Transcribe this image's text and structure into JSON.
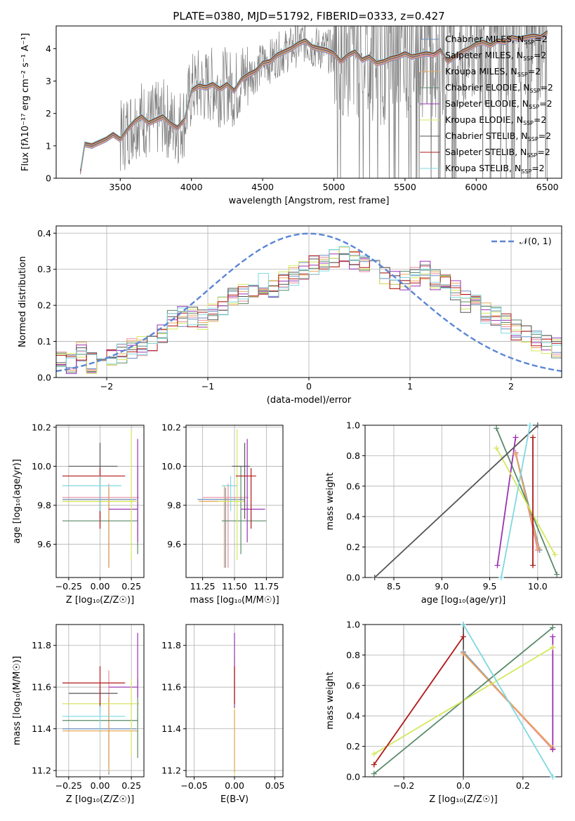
{
  "figure_title": "PLATE=0380, MJD=51792, FIBERID=0333, z=0.427",
  "palette": {
    "data_grey": "#7f7f7f",
    "normal_curve": "#5b86d6",
    "Chabrier MILES": "#6c8ebf",
    "Salpeter MILES": "#e88aa0",
    "Kroupa MILES": "#e8a95a",
    "Chabrier ELODIE": "#5a8a6a",
    "Salpeter ELODIE": "#9b32b4",
    "Kroupa ELODIE": "#d4e85a",
    "Chabrier STELIB": "#555555",
    "Salpeter STELIB": "#b01818",
    "Kroupa STELIB": "#7fd8e0"
  },
  "chart_data": [
    {
      "id": "spectrum",
      "type": "line",
      "xlabel": "wavelength [Angstrom, rest frame]",
      "ylabel": "Flux [f_λ 10^-17 erg cm^-2 s^-1 A^-1]",
      "xlim": [
        3050,
        6600
      ],
      "ylim": [
        0,
        4.7
      ],
      "xticks": [
        "3500",
        "4000",
        "4500",
        "5000",
        "5500",
        "6000",
        "6500"
      ],
      "yticks": [
        "0",
        "1",
        "2",
        "3",
        "4"
      ],
      "grid": false,
      "legend_position": "top-right",
      "legend": [
        "Chabrier MILES, N_SSP=2",
        "Salpeter MILES, N_SSP=2",
        "Kroupa MILES, N_SSP=2",
        "Chabrier ELODIE, N_SSP=2",
        "Salpeter ELODIE, N_SSP=2",
        "Kroupa ELODIE, N_SSP=2",
        "Chabrier STELIB, N_SSP=2",
        "Salpeter STELIB, N_SSP=2",
        "Kroupa STELIB, N_SSP=2"
      ],
      "model_continuum": {
        "x": [
          3220,
          3250,
          3300,
          3350,
          3400,
          3450,
          3500,
          3550,
          3600,
          3650,
          3700,
          3750,
          3800,
          3850,
          3900,
          3950,
          4000,
          4050,
          4100,
          4150,
          4200,
          4250,
          4300,
          4350,
          4400,
          4450,
          4500,
          4550,
          4600,
          4650,
          4700,
          4750,
          4800,
          4850,
          4900,
          4950,
          5000,
          5050,
          5100,
          5150,
          5200,
          5250,
          5300,
          5350,
          5400,
          5450,
          5500,
          5550,
          5600,
          5650,
          5700,
          5750,
          5800,
          5850,
          5900,
          5950,
          6000,
          6050,
          6100,
          6150,
          6200,
          6250,
          6300,
          6350,
          6400,
          6450,
          6500
        ],
        "y": [
          0.2,
          1.05,
          1.0,
          1.1,
          1.2,
          1.35,
          1.2,
          1.5,
          1.75,
          1.9,
          1.7,
          1.8,
          1.9,
          1.7,
          1.55,
          1.8,
          2.7,
          2.85,
          2.8,
          2.9,
          2.75,
          2.9,
          2.7,
          3.05,
          3.2,
          3.3,
          3.55,
          3.6,
          3.8,
          3.9,
          4.0,
          4.15,
          4.25,
          4.05,
          4.0,
          3.95,
          3.85,
          3.6,
          3.8,
          3.9,
          3.65,
          3.75,
          3.55,
          3.6,
          3.7,
          3.75,
          3.85,
          3.75,
          3.8,
          3.85,
          3.8,
          3.95,
          3.6,
          3.75,
          3.9,
          4.0,
          4.15,
          4.2,
          4.1,
          4.25,
          4.2,
          4.35,
          4.3,
          4.35,
          4.4,
          4.35,
          4.5
        ]
      }
    },
    {
      "id": "residuals",
      "type": "histogram",
      "xlabel": "(data-model)/error",
      "ylabel": "Normed distribution",
      "xlim": [
        -2.5,
        2.5
      ],
      "ylim": [
        0,
        0.42
      ],
      "xticks": [
        "−2",
        "−1",
        "0",
        "1",
        "2"
      ],
      "yticks": [
        "0.0",
        "0.1",
        "0.2",
        "0.3",
        "0.4"
      ],
      "grid": true,
      "legend_position": "top-right",
      "legend": [
        "N(0, 1)"
      ],
      "bins": [
        -2.5,
        -2.4,
        -2.3,
        -2.2,
        -2.1,
        -2.0,
        -1.9,
        -1.8,
        -1.7,
        -1.6,
        -1.5,
        -1.4,
        -1.3,
        -1.2,
        -1.1,
        -1.0,
        -0.9,
        -0.8,
        -0.7,
        -0.6,
        -0.5,
        -0.4,
        -0.3,
        -0.2,
        -0.1,
        0.0,
        0.1,
        0.2,
        0.3,
        0.4,
        0.5,
        0.6,
        0.7,
        0.8,
        0.9,
        1.0,
        1.1,
        1.2,
        1.3,
        1.4,
        1.5,
        1.6,
        1.7,
        1.8,
        1.9,
        2.0,
        2.1,
        2.2,
        2.3,
        2.4,
        2.5
      ],
      "mean_histogram": [
        0.06,
        0.04,
        0.07,
        0.04,
        0.05,
        0.06,
        0.07,
        0.08,
        0.09,
        0.1,
        0.12,
        0.16,
        0.17,
        0.17,
        0.16,
        0.18,
        0.2,
        0.22,
        0.23,
        0.25,
        0.26,
        0.25,
        0.27,
        0.28,
        0.3,
        0.31,
        0.32,
        0.33,
        0.34,
        0.33,
        0.32,
        0.3,
        0.28,
        0.27,
        0.27,
        0.28,
        0.3,
        0.27,
        0.26,
        0.24,
        0.21,
        0.2,
        0.18,
        0.17,
        0.15,
        0.13,
        0.12,
        0.1,
        0.09,
        0.08
      ],
      "normal_curve": {
        "mean": 0,
        "sigma": 1
      }
    },
    {
      "id": "age_vs_Z",
      "type": "errorbar",
      "xlabel": "Z [log10(Z/Z☉)]",
      "ylabel": "age [log10(age/yr)]",
      "xlim": [
        -0.35,
        0.35
      ],
      "ylim": [
        9.43,
        10.21
      ],
      "xticks": [
        "−0.25",
        "0.00",
        "0.25"
      ],
      "yticks": [
        "9.6",
        "9.8",
        "10.0",
        "10.2"
      ],
      "grid": true,
      "points": [
        {
          "model": "Chabrier MILES",
          "x": 0.07,
          "y": 9.83,
          "xerr": [
            0.37,
            0.22
          ],
          "yerr": [
            0.35,
            0.06
          ]
        },
        {
          "model": "Salpeter MILES",
          "x": 0.07,
          "y": 9.84,
          "xerr": [
            0.37,
            0.24
          ],
          "yerr": [
            0.36,
            0.07
          ]
        },
        {
          "model": "Kroupa MILES",
          "x": 0.07,
          "y": 9.82,
          "xerr": [
            0.37,
            0.23
          ],
          "yerr": [
            0.34,
            0.08
          ]
        },
        {
          "model": "Chabrier ELODIE",
          "x": 0.3,
          "y": 9.72,
          "xerr": [
            0.6,
            0.0
          ],
          "yerr": [
            0.17,
            0.28
          ]
        },
        {
          "model": "Salpeter ELODIE",
          "x": 0.3,
          "y": 9.78,
          "xerr": [
            0.23,
            0.0
          ],
          "yerr": [
            0.17,
            0.36
          ]
        },
        {
          "model": "Kroupa ELODIE",
          "x": 0.25,
          "y": 9.82,
          "xerr": [
            0.55,
            0.05
          ],
          "yerr": [
            0.3,
            0.37
          ]
        },
        {
          "model": "Chabrier STELIB",
          "x": 0.0,
          "y": 10.0,
          "xerr": [
            0.25,
            0.14
          ],
          "yerr": [
            0.27,
            0.12
          ]
        },
        {
          "model": "Salpeter STELIB",
          "x": 0.0,
          "y": 9.95,
          "xerr": [
            0.3,
            0.2
          ],
          "yerr": [
            0.27,
            0.04
          ]
        },
        {
          "model": "Kroupa STELIB",
          "x": 0.0,
          "y": 9.9,
          "xerr": [
            0.3,
            0.17
          ],
          "yerr": [
            0.13,
            0.05
          ]
        }
      ]
    },
    {
      "id": "age_vs_mass",
      "type": "errorbar",
      "xlabel": "mass [log10(M/M☉)]",
      "ylabel": "",
      "xlim": [
        11.12,
        11.88
      ],
      "ylim": [
        9.43,
        10.21
      ],
      "xticks": [
        "11.25",
        "11.50",
        "11.75"
      ],
      "yticks": [
        "9.6",
        "9.8",
        "10.0",
        "10.2"
      ],
      "grid": true,
      "points": [
        {
          "model": "Chabrier MILES",
          "x": 11.43,
          "y": 9.83,
          "xerr": [
            0.22,
            0.15
          ],
          "yerr": [
            0.35,
            0.06
          ]
        },
        {
          "model": "Salpeter MILES",
          "x": 11.45,
          "y": 9.84,
          "xerr": [
            0.2,
            0.16
          ],
          "yerr": [
            0.36,
            0.07
          ]
        },
        {
          "model": "Kroupa MILES",
          "x": 11.42,
          "y": 9.82,
          "xerr": [
            0.2,
            0.16
          ],
          "yerr": [
            0.34,
            0.08
          ]
        },
        {
          "model": "Chabrier ELODIE",
          "x": 11.55,
          "y": 9.72,
          "xerr": [
            0.15,
            0.2
          ],
          "yerr": [
            0.17,
            0.28
          ]
        },
        {
          "model": "Salpeter ELODIE",
          "x": 11.6,
          "y": 9.78,
          "xerr": [
            0.05,
            0.14
          ],
          "yerr": [
            0.17,
            0.36
          ]
        },
        {
          "model": "Kroupa ELODIE",
          "x": 11.52,
          "y": 9.82,
          "xerr": [
            0.15,
            0.05
          ],
          "yerr": [
            0.3,
            0.37
          ]
        },
        {
          "model": "Chabrier STELIB",
          "x": 11.58,
          "y": 10.0,
          "xerr": [
            0.1,
            0.04
          ],
          "yerr": [
            0.27,
            0.12
          ]
        },
        {
          "model": "Salpeter STELIB",
          "x": 11.63,
          "y": 9.95,
          "xerr": [
            0.12,
            0.04
          ],
          "yerr": [
            0.27,
            0.04
          ]
        },
        {
          "model": "Kroupa STELIB",
          "x": 11.47,
          "y": 9.9,
          "xerr": [
            0.07,
            0.05
          ],
          "yerr": [
            0.13,
            0.05
          ]
        }
      ]
    },
    {
      "id": "weight_vs_age",
      "type": "line",
      "xlabel": "age [log10(age/yr)]",
      "ylabel": "mass weight",
      "xlim": [
        8.2,
        10.25
      ],
      "ylim": [
        0,
        1
      ],
      "xticks": [
        "8.5",
        "9.0",
        "9.5",
        "10.0"
      ],
      "yticks": [
        "0.0",
        "0.2",
        "0.4",
        "0.6",
        "0.8",
        "1.0"
      ],
      "grid": true,
      "series": [
        {
          "model": "Chabrier MILES",
          "x": [
            9.77,
            10.02
          ],
          "y": [
            0.82,
            0.18
          ]
        },
        {
          "model": "Salpeter MILES",
          "x": [
            9.77,
            10.0
          ],
          "y": [
            0.82,
            0.18
          ]
        },
        {
          "model": "Kroupa MILES",
          "x": [
            9.77,
            10.01
          ],
          "y": [
            0.81,
            0.19
          ]
        },
        {
          "model": "Chabrier ELODIE",
          "x": [
            9.57,
            10.2
          ],
          "y": [
            0.98,
            0.02
          ]
        },
        {
          "model": "Salpeter ELODIE",
          "x": [
            9.77,
            9.58
          ],
          "y": [
            0.92,
            0.08
          ]
        },
        {
          "model": "Kroupa ELODIE",
          "x": [
            9.57,
            10.18
          ],
          "y": [
            0.85,
            0.15
          ]
        },
        {
          "model": "Chabrier STELIB",
          "x": [
            8.3,
            10.0
          ],
          "y": [
            0.0,
            1.0
          ]
        },
        {
          "model": "Salpeter STELIB",
          "x": [
            9.95,
            9.95
          ],
          "y": [
            0.92,
            0.08
          ]
        },
        {
          "model": "Kroupa STELIB",
          "x": [
            9.62,
            9.92
          ],
          "y": [
            0.0,
            1.0
          ]
        }
      ]
    },
    {
      "id": "mass_vs_Z",
      "type": "errorbar",
      "xlabel": "Z [log10(Z/Z☉)]",
      "ylabel": "mass [log10(M/M☉)]",
      "xlim": [
        -0.35,
        0.35
      ],
      "ylim": [
        11.17,
        11.9
      ],
      "xticks": [
        "−0.25",
        "0.00",
        "0.25"
      ],
      "yticks": [
        "11.2",
        "11.4",
        "11.6",
        "11.8"
      ],
      "grid": true,
      "points": [
        {
          "model": "Chabrier MILES",
          "x": 0.07,
          "y": 11.4,
          "xerr": [
            0.37,
            0.22
          ],
          "yerr": [
            0.22,
            0.15
          ]
        },
        {
          "model": "Salpeter MILES",
          "x": 0.07,
          "y": 11.52,
          "xerr": [
            0.37,
            0.24
          ],
          "yerr": [
            0.3,
            0.16
          ]
        },
        {
          "model": "Kroupa MILES",
          "x": 0.07,
          "y": 11.39,
          "xerr": [
            0.37,
            0.23
          ],
          "yerr": [
            0.2,
            0.16
          ]
        },
        {
          "model": "Chabrier ELODIE",
          "x": 0.3,
          "y": 11.44,
          "xerr": [
            0.6,
            0.0
          ],
          "yerr": [
            0.18,
            0.2
          ]
        },
        {
          "model": "Salpeter ELODIE",
          "x": 0.3,
          "y": 11.6,
          "xerr": [
            0.23,
            0.0
          ],
          "yerr": [
            0.05,
            0.26
          ]
        },
        {
          "model": "Kroupa ELODIE",
          "x": 0.25,
          "y": 11.52,
          "xerr": [
            0.55,
            0.05
          ],
          "yerr": [
            0.25,
            0.12
          ]
        },
        {
          "model": "Chabrier STELIB",
          "x": 0.0,
          "y": 11.57,
          "xerr": [
            0.25,
            0.14
          ],
          "yerr": [
            0.1,
            0.04
          ]
        },
        {
          "model": "Salpeter STELIB",
          "x": 0.0,
          "y": 11.62,
          "xerr": [
            0.3,
            0.2
          ],
          "yerr": [
            0.12,
            0.08
          ]
        },
        {
          "model": "Kroupa STELIB",
          "x": 0.0,
          "y": 11.46,
          "xerr": [
            0.3,
            0.2
          ],
          "yerr": [
            0.07,
            0.05
          ]
        }
      ]
    },
    {
      "id": "mass_vs_EBV",
      "type": "errorbar",
      "xlabel": "E(B-V)",
      "ylabel": "",
      "xlim": [
        -0.06,
        0.06
      ],
      "ylim": [
        11.17,
        11.9
      ],
      "xticks": [
        "−0.05",
        "0.00",
        "0.05"
      ],
      "yticks": [
        "11.2",
        "11.4",
        "11.6",
        "11.8"
      ],
      "grid": true,
      "points": [
        {
          "model": "Kroupa ELODIE",
          "x": 0.0,
          "y": 11.5,
          "xerr": [
            0,
            0
          ],
          "yerr": [
            0.32,
            0.25
          ]
        },
        {
          "model": "Salpeter ELODIE",
          "x": 0.0,
          "y": 11.6,
          "xerr": [
            0,
            0
          ],
          "yerr": [
            0.1,
            0.26
          ]
        },
        {
          "model": "Salpeter STELIB",
          "x": 0.0,
          "y": 11.62,
          "xerr": [
            0,
            0
          ],
          "yerr": [
            0.1,
            0.08
          ]
        },
        {
          "model": "Kroupa MILES",
          "x": 0.0,
          "y": 11.39,
          "xerr": [
            0,
            0
          ],
          "yerr": [
            0.2,
            0.1
          ]
        }
      ]
    },
    {
      "id": "weight_vs_Z",
      "type": "line",
      "xlabel": "Z [log10(Z/Z☉)]",
      "ylabel": "mass weight",
      "xlim": [
        -0.33,
        0.33
      ],
      "ylim": [
        0,
        1
      ],
      "xticks": [
        "−0.2",
        "0.0",
        "0.2"
      ],
      "yticks": [
        "0.0",
        "0.2",
        "0.4",
        "0.6",
        "0.8",
        "1.0"
      ],
      "grid": true,
      "series": [
        {
          "model": "Chabrier MILES",
          "x": [
            0.0,
            0.3
          ],
          "y": [
            0.82,
            0.18
          ]
        },
        {
          "model": "Salpeter MILES",
          "x": [
            0.0,
            0.3
          ],
          "y": [
            0.81,
            0.18
          ]
        },
        {
          "model": "Kroupa MILES",
          "x": [
            0.0,
            0.3
          ],
          "y": [
            0.81,
            0.19
          ]
        },
        {
          "model": "Chabrier ELODIE",
          "x": [
            -0.3,
            0.3
          ],
          "y": [
            0.02,
            0.98
          ]
        },
        {
          "model": "Salpeter ELODIE",
          "x": [
            0.3,
            0.3
          ],
          "y": [
            0.92,
            0.18
          ]
        },
        {
          "model": "Kroupa ELODIE",
          "x": [
            -0.3,
            0.3
          ],
          "y": [
            0.15,
            0.85
          ]
        },
        {
          "model": "Chabrier STELIB",
          "x": [
            0.0,
            0.0
          ],
          "y": [
            0.0,
            1.0
          ]
        },
        {
          "model": "Salpeter STELIB",
          "x": [
            -0.3,
            0.0
          ],
          "y": [
            0.08,
            0.92
          ]
        },
        {
          "model": "Kroupa STELIB",
          "x": [
            0.0,
            0.3
          ],
          "y": [
            1.0,
            0.0
          ]
        }
      ]
    }
  ]
}
